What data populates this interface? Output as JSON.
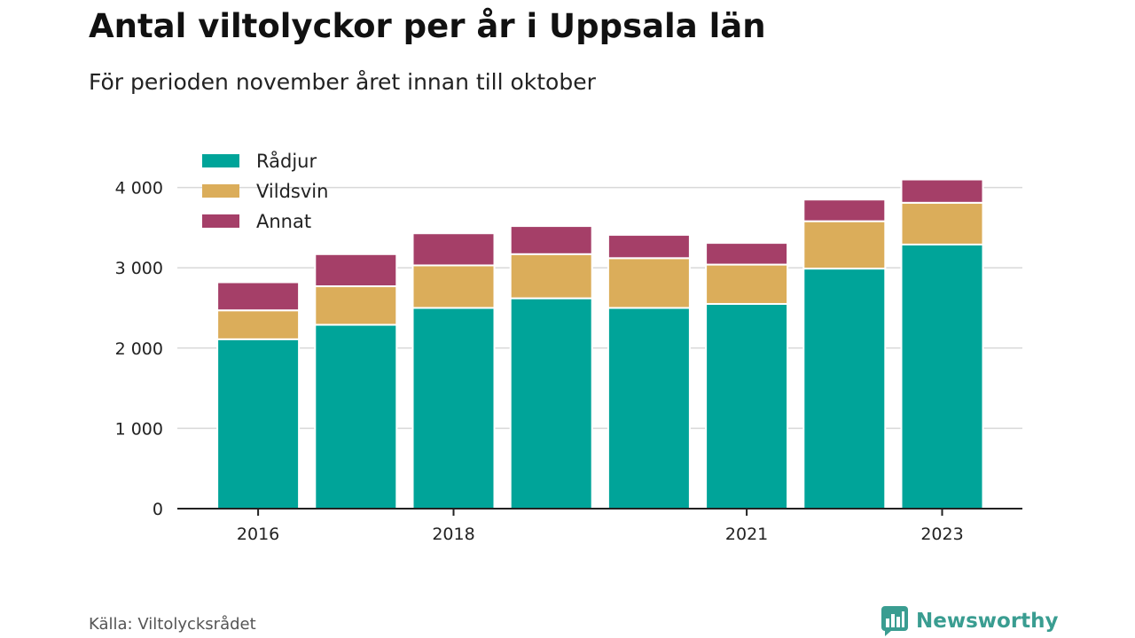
{
  "header": {
    "title": "Antal viltolyckor per år i Uppsala län",
    "subtitle": "För perioden november året innan till oktober"
  },
  "footer": {
    "source": "Källa: Viltolycksrådet",
    "brand": "Newsworthy"
  },
  "colors": {
    "Rådjur": "#00a499",
    "Vildsvin": "#dbad5a",
    "Annat": "#a53f68",
    "brand": "#3a9d91"
  },
  "chart_data": {
    "type": "bar",
    "stacked": true,
    "title": "Antal viltolyckor per år i Uppsala län",
    "subtitle": "För perioden november året innan till oktober",
    "x": [
      2016,
      2017,
      2018,
      2019,
      2020,
      2021,
      2022,
      2023
    ],
    "x_tick_labels": [
      "2016",
      "2018",
      "2021",
      "2023"
    ],
    "x_tick_values": [
      2016,
      2018,
      2021,
      2023
    ],
    "ylim": [
      0,
      4200
    ],
    "y_ticks": [
      0,
      1000,
      2000,
      3000,
      4000
    ],
    "y_tick_labels": [
      "0",
      "1 000",
      "2 000",
      "3 000",
      "4 000"
    ],
    "grid": true,
    "legend_position": "top-left",
    "series": [
      {
        "name": "Rådjur",
        "values": [
          2110,
          2290,
          2500,
          2620,
          2500,
          2550,
          2990,
          3290
        ]
      },
      {
        "name": "Vildsvin",
        "values": [
          360,
          480,
          530,
          550,
          620,
          490,
          590,
          520
        ]
      },
      {
        "name": "Annat",
        "values": [
          350,
          400,
          400,
          350,
          290,
          270,
          270,
          290
        ]
      }
    ]
  }
}
